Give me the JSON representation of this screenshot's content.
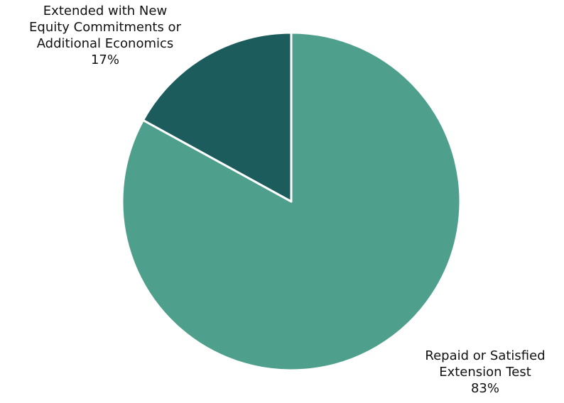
{
  "chart_data": {
    "type": "pie",
    "start_angle_deg": 0,
    "direction": "clockwise",
    "slices": [
      {
        "label_lines": [
          "Repaid or Satisfied",
          "Extension Test"
        ],
        "pct_label": "83%",
        "value": 83,
        "color": "#4ea08c"
      },
      {
        "label_lines": [
          "Extended with New",
          "Equity Commitments or",
          "Additional Economics"
        ],
        "pct_label": "17%",
        "value": 17,
        "color": "#1d5c5c"
      }
    ],
    "legend": "none",
    "slice_border_color": "#ffffff"
  }
}
